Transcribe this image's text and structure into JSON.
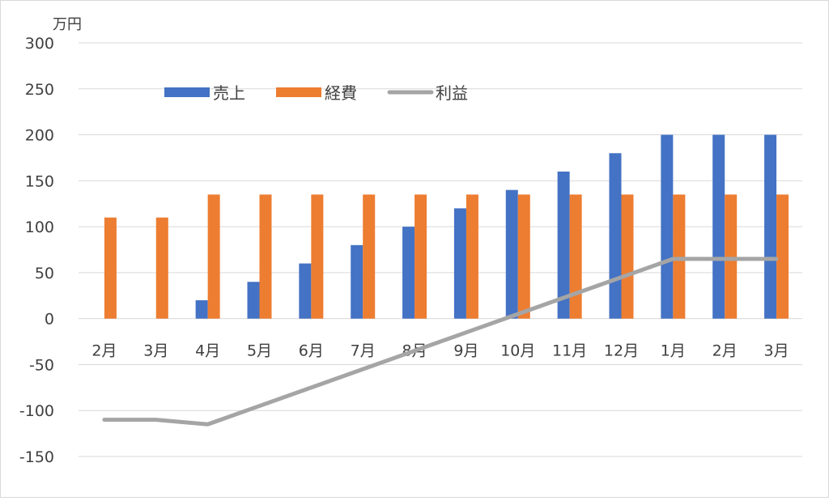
{
  "chart_data": {
    "type": "bar",
    "unit_label": "万円",
    "categories": [
      "2月",
      "3月",
      "4月",
      "5月",
      "6月",
      "7月",
      "8月",
      "9月",
      "10月",
      "11月",
      "12月",
      "1月",
      "2月",
      "3月"
    ],
    "series": [
      {
        "name": "売上",
        "type": "bar",
        "color": "#4472C4",
        "values": [
          0,
          0,
          20,
          40,
          60,
          80,
          100,
          120,
          140,
          160,
          180,
          200,
          200,
          200
        ]
      },
      {
        "name": "経費",
        "type": "bar",
        "color": "#ED7D31",
        "values": [
          110,
          110,
          135,
          135,
          135,
          135,
          135,
          135,
          135,
          135,
          135,
          135,
          135,
          135
        ]
      },
      {
        "name": "利益",
        "type": "line",
        "color": "#A5A5A5",
        "values": [
          -110,
          -110,
          -115,
          -95,
          -75,
          -55,
          -35,
          -15,
          5,
          25,
          45,
          65,
          65,
          65
        ]
      }
    ],
    "ylim": [
      -150,
      300
    ],
    "yticks": [
      300,
      250,
      200,
      150,
      100,
      50,
      0,
      -50,
      -100,
      -150
    ],
    "grid": true,
    "legend_position": "top-left"
  }
}
